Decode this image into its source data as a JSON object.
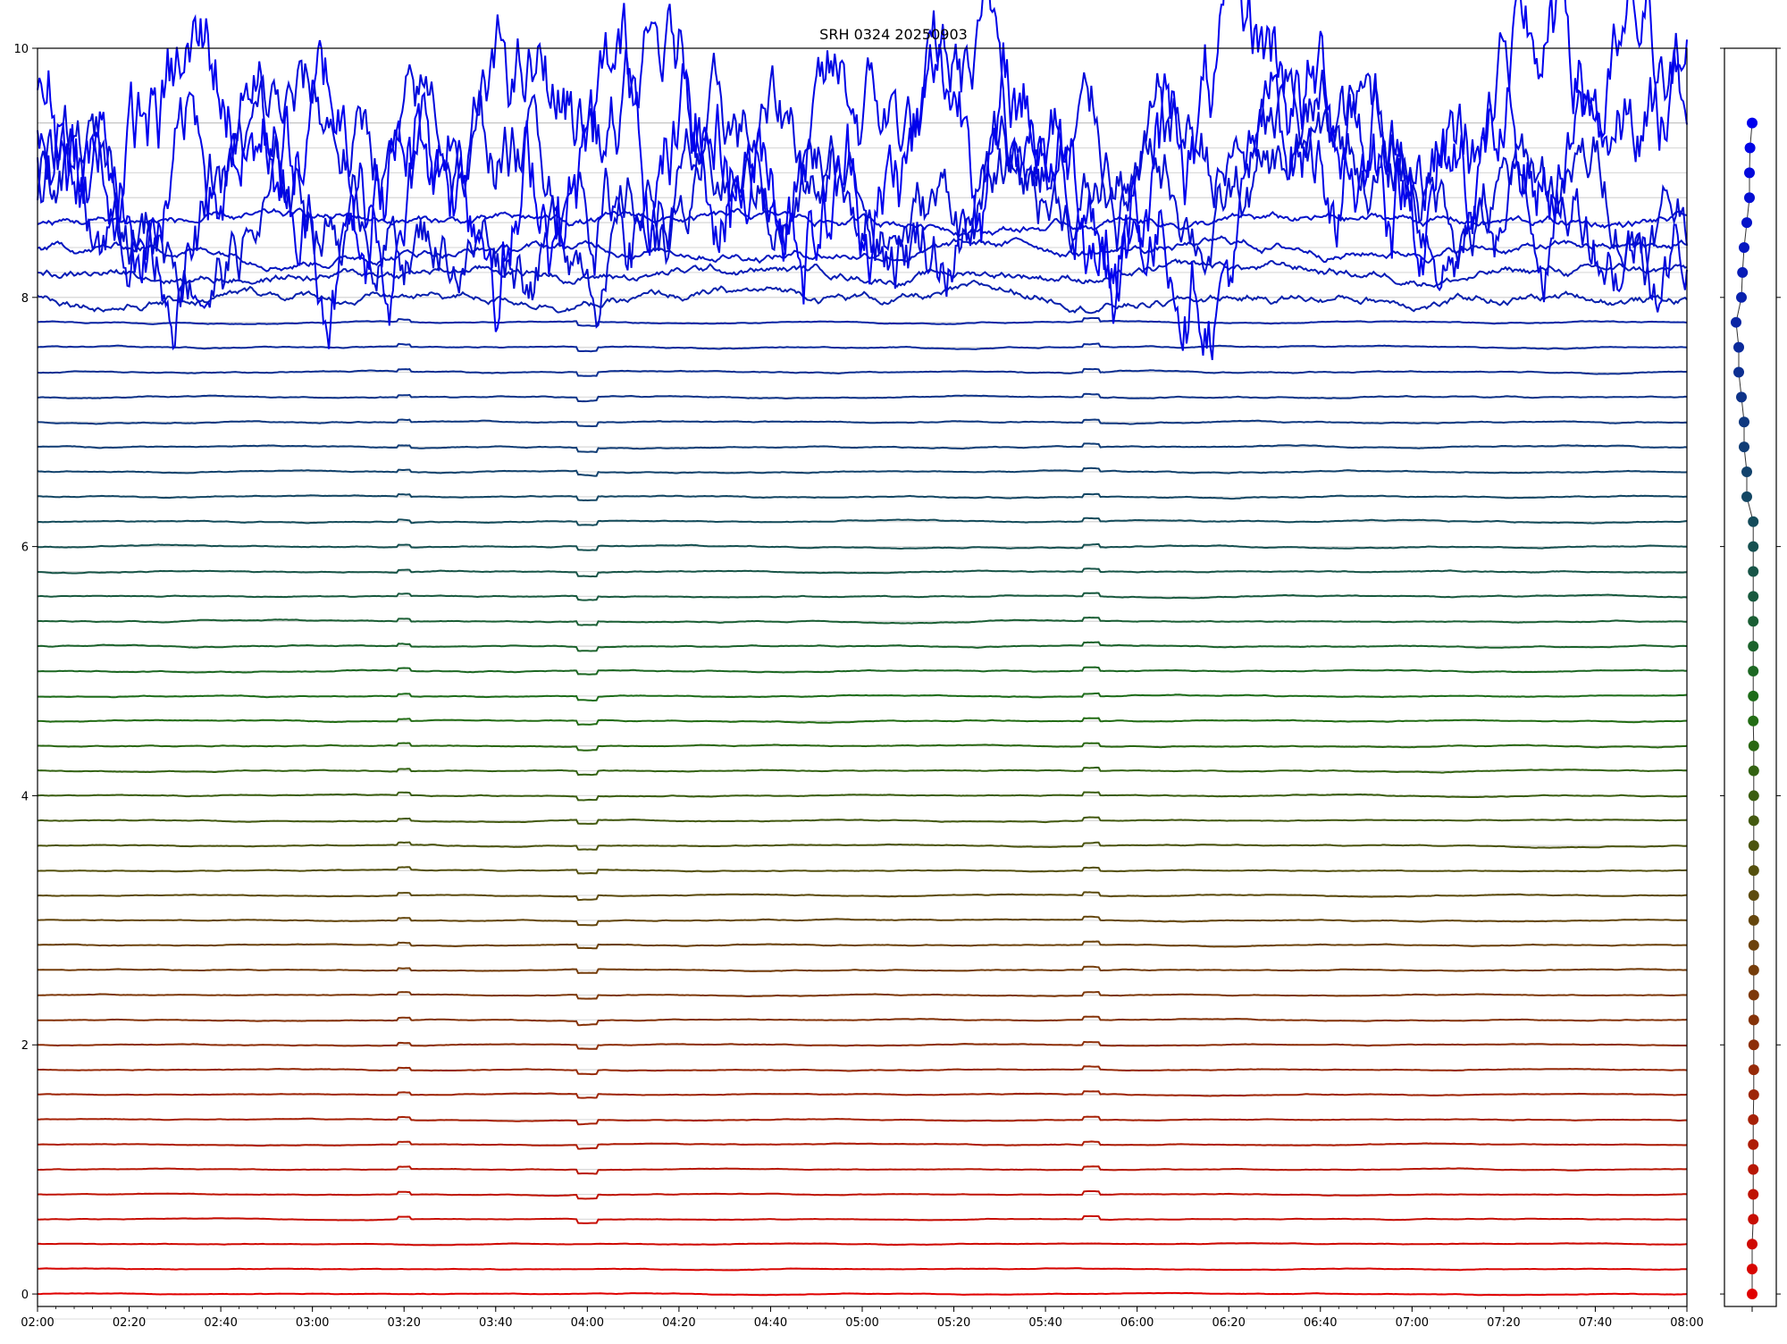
{
  "chart_data": {
    "type": "line",
    "title": "SRH 0324 20250903",
    "xlabel": "",
    "ylabel": "",
    "x_range": [
      "02:00",
      "08:00"
    ],
    "x_tick_labels": [
      "02:00",
      "02:20",
      "02:40",
      "03:00",
      "03:20",
      "03:40",
      "04:00",
      "04:20",
      "04:40",
      "05:00",
      "05:20",
      "05:40",
      "06:00",
      "06:20",
      "06:40",
      "07:00",
      "07:20",
      "07:40",
      "08:00"
    ],
    "ylim": [
      -0.1,
      10.0
    ],
    "y_ticks": [
      0,
      2,
      4,
      6,
      8,
      10
    ],
    "y_tick_labels": [
      "0",
      "2",
      "4",
      "6",
      "8",
      "10"
    ],
    "grid": "horizontal lines at each trace baseline",
    "legend": "none",
    "series_count": 48,
    "series_baselines": [
      0.0,
      0.2,
      0.4,
      0.6,
      0.8,
      1.0,
      1.2,
      1.4,
      1.6,
      1.8,
      2.0,
      2.2,
      2.4,
      2.6,
      2.8,
      3.0,
      3.2,
      3.4,
      3.6,
      3.8,
      4.0,
      4.2,
      4.4,
      4.6,
      4.8,
      5.0,
      5.2,
      5.4,
      5.6,
      5.8,
      6.0,
      6.2,
      6.4,
      6.6,
      6.8,
      7.0,
      7.2,
      7.4,
      7.6,
      7.8,
      8.0,
      8.2,
      8.4,
      8.6,
      8.8,
      9.0,
      9.2,
      9.4
    ],
    "color_range": [
      "#e00000",
      "#0000ee"
    ],
    "side_panel": {
      "type": "scatter",
      "description": "marker per trace, same color as trace",
      "y": [
        0.0,
        0.2,
        0.4,
        0.6,
        0.8,
        1.0,
        1.2,
        1.4,
        1.6,
        1.8,
        2.0,
        2.2,
        2.4,
        2.6,
        2.8,
        3.0,
        3.2,
        3.4,
        3.6,
        3.8,
        4.0,
        4.2,
        4.4,
        4.6,
        4.8,
        5.0,
        5.2,
        5.4,
        5.6,
        5.8,
        6.0,
        6.2,
        6.4,
        6.6,
        6.8,
        7.0,
        7.2,
        7.4,
        7.6,
        7.8,
        8.0,
        8.2,
        8.4,
        8.6,
        8.8,
        9.0,
        9.2,
        9.4
      ],
      "x_offset": [
        0.0,
        0.0,
        0.0,
        0.02,
        0.02,
        0.02,
        0.02,
        0.02,
        0.03,
        0.03,
        0.03,
        0.03,
        0.03,
        0.03,
        0.03,
        0.03,
        0.03,
        0.03,
        0.03,
        0.03,
        0.03,
        0.03,
        0.03,
        0.02,
        0.02,
        0.02,
        0.02,
        0.02,
        0.02,
        0.02,
        0.02,
        0.02,
        -0.1,
        -0.1,
        -0.15,
        -0.15,
        -0.2,
        -0.25,
        -0.25,
        -0.3,
        -0.2,
        -0.18,
        -0.15,
        -0.1,
        -0.05,
        -0.05,
        -0.04,
        0.0
      ]
    }
  }
}
